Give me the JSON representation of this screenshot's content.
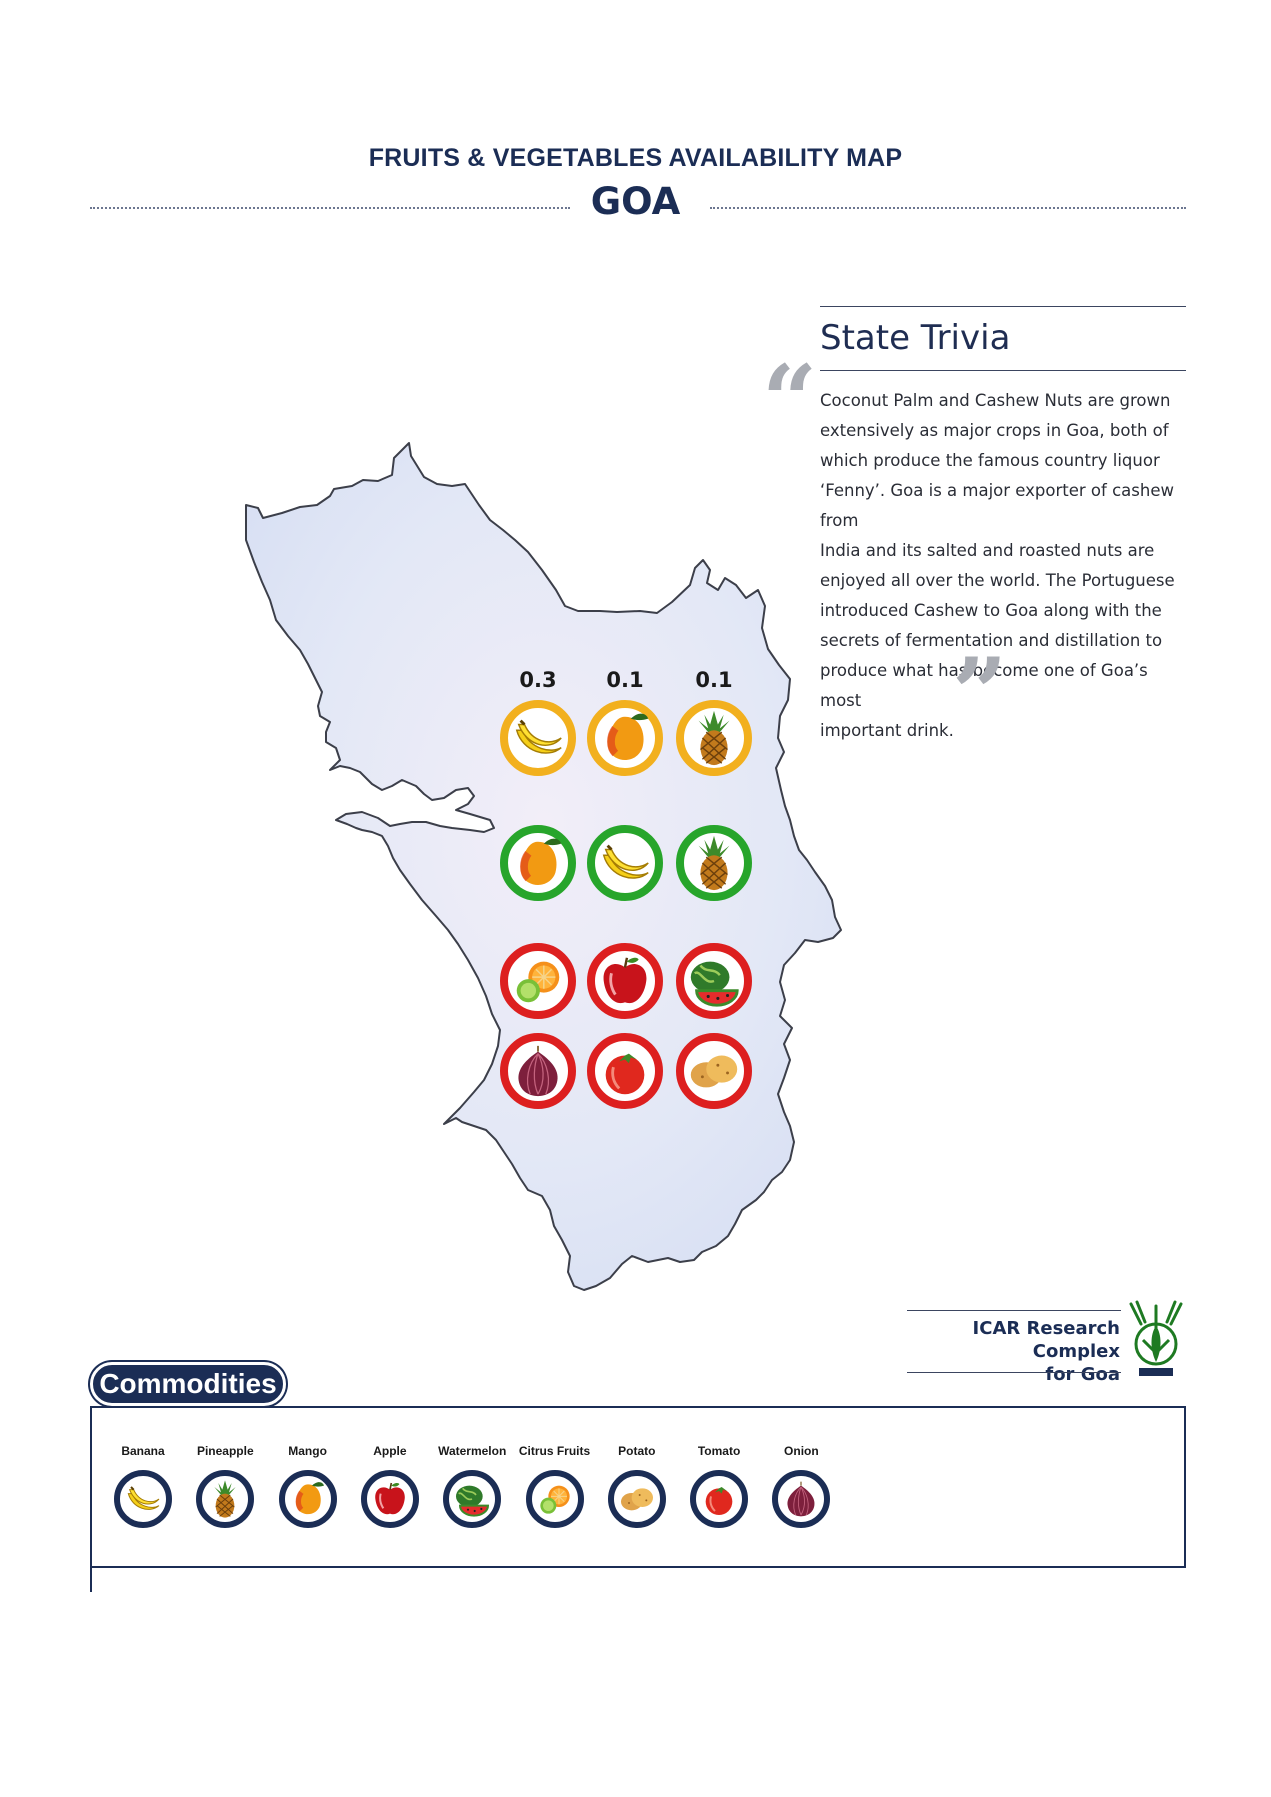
{
  "header": {
    "title": "FRUITS & VEGETABLES AVAILABILITY MAP",
    "state": "GOA"
  },
  "trivia": {
    "heading": "State Trivia",
    "lines": [
      "Coconut Palm and Cashew Nuts are grown",
      "extensively as major crops in Goa, both of",
      "which produce the famous country liquor",
      "‘Fenny’. Goa is a major exporter of cashew from",
      "India and its salted and roasted nuts are",
      "enjoyed all over the world. The Portuguese",
      "introduced Cashew to Goa along with the",
      "secrets of fermentation and distillation to",
      "produce what has become one of Goa’s most",
      "important drink."
    ]
  },
  "map": {
    "production_values": [
      "0.3",
      "0.1",
      "0.1"
    ],
    "rows": [
      {
        "ring": "yellow",
        "items": [
          "banana",
          "mango",
          "pineapple"
        ]
      },
      {
        "ring": "green",
        "items": [
          "mango",
          "banana",
          "pineapple"
        ]
      },
      {
        "ring": "red",
        "items": [
          "citrus",
          "apple",
          "watermelon"
        ]
      },
      {
        "ring": "red",
        "items": [
          "onion",
          "tomato",
          "potato"
        ]
      }
    ],
    "ring_colors": {
      "yellow": "#f2b01e",
      "green": "#27a52b",
      "red": "#dd1f1f"
    },
    "map_fill": "#e4e8f6"
  },
  "institute": {
    "line1": "ICAR Research Complex",
    "line2": "for Goa"
  },
  "commodities": {
    "heading": "Commodities",
    "items": [
      {
        "label": "Banana",
        "icon": "banana"
      },
      {
        "label": "Pineapple",
        "icon": "pineapple"
      },
      {
        "label": "Mango",
        "icon": "mango"
      },
      {
        "label": "Apple",
        "icon": "apple"
      },
      {
        "label": "Watermelon",
        "icon": "watermelon"
      },
      {
        "label": "Citrus Fruits",
        "icon": "citrus"
      },
      {
        "label": "Potato",
        "icon": "potato"
      },
      {
        "label": "Tomato",
        "icon": "tomato"
      },
      {
        "label": "Onion",
        "icon": "onion"
      }
    ]
  }
}
